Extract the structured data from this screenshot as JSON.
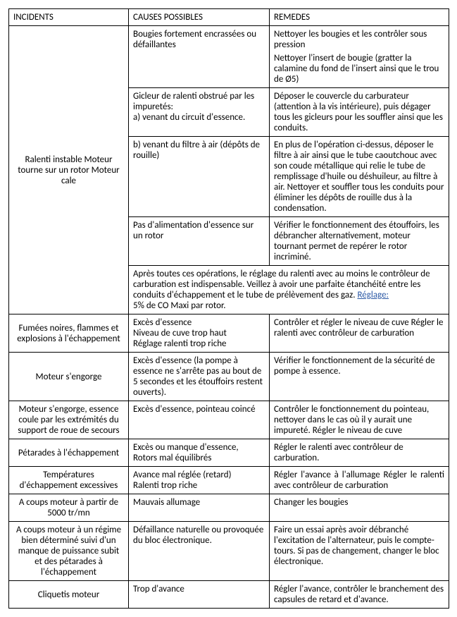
{
  "headers": [
    "INCIDENTS",
    "CAUSES POSSIBLES",
    "REMEDES"
  ],
  "incident1": {
    "label": "Ralenti instable Moteur tourne sur un rotor Moteur cale",
    "cause1": "Bougies fortement encrassées ou défaillantes",
    "remedy1a": "Nettoyer les bougies et les contrôler sous pression",
    "remedy1b": "Nettoyer l'insert de bougie (gratter la calamine du fond de l'insert ainsi que le trou de Ø5)",
    "cause2": "Gicleur de ralenti obstrué par les impuretés:\na) venant du circuit d'essence.",
    "remedy2": "Déposer le couvercle du carburateur (attention à la vis intérieure), puis dégager tous les gicleurs pour les souffler ainsi que les conduits.",
    "cause3": "b) venant du filtre à air (dépôts de rouille)",
    "remedy3": "En plus de l'opération ci-dessus, déposer le filtre à air ainsi que le tube caoutchouc avec son coude métallique qui relie le tube de remplissage d'huile ou déshuileur, au filtre à air. Nettoyer et souffler tous les conduits pour éliminer les dépôts de rouille dus à la condensation.",
    "cause4": "Pas d'alimentation d'essence sur un rotor",
    "remedy4": "Vérifier le fonctionnement des étouffoirs, les débrancher alternativement, moteur tournant permet de repérer le rotor incriminé.",
    "note_pre": "Après toutes ces opérations, le réglage du ralenti avec au moins le contrôleur de carburation est indispensable. Veillez à avoir une parfaite étanchéité entre les conduits d'échappement et le tube de prélèvement des gaz. ",
    "note_link": "Réglage:",
    "note_post": "5% de CO Maxi par rotor."
  },
  "incident2": {
    "label": "Fumées noires, flammes et explosions à l'échappement",
    "cause": "Excès d'essence\nNiveau de cuve trop haut\nRéglage ralenti trop riche",
    "remedy": "Contrôler et régler le niveau de cuve Régler le ralenti avec contrôleur de carburation"
  },
  "incident3": {
    "label": "Moteur s'engorge",
    "cause": "Excès d'essence (la pompe à essence ne s'arrête pas au bout de 5 secondes et les étouffoirs restent ouverts).",
    "remedy": "Vérifier le fonctionnement de la sécurité de pompe à essence."
  },
  "incident4": {
    "label": "Moteur s'engorge, essence coule par les extrémités du support de roue de secours",
    "cause": "Excès d'essence, pointeau coincé",
    "remedy": "Contrôler le fonctionnement du pointeau, nettoyer dans le cas où il y aurait une impureté. Régler le niveau de cuve"
  },
  "incident5": {
    "label": "Pétarades à l'échappement",
    "cause": "Excès ou manque d'essence,\nRotors mal équilibrés",
    "remedy": "Régler le ralenti avec contrôleur de carburation."
  },
  "incident6": {
    "label": "Températures d'échappement excessives",
    "cause": "Avance mal réglée (retard)\nRalenti trop riche",
    "remedy": "Régler l'avance à l'allumage                        Régler le ralenti avec contrôleur de carburation"
  },
  "incident7": {
    "label": "A coups moteur à partir de 5000 tr/mn",
    "cause": "Mauvais allumage",
    "remedy": "Changer les bougies"
  },
  "incident8": {
    "label": "A coups moteur à un régime bien déterminé suivi d'un manque de puissance subit et des pétarades à l'échappement",
    "cause": "Défaillance naturelle ou provoquée du bloc électronique.",
    "remedy": "Faire un essai après avoir débranché l'excitation de l'alternateur, puis le compte-tours. Si pas de changement, changer le bloc électronique."
  },
  "incident9": {
    "label": "Cliquetis moteur",
    "cause": "Trop d'avance",
    "remedy": "Régler l'avance, contrôler le branchement des capsules de retard et d'avance."
  }
}
